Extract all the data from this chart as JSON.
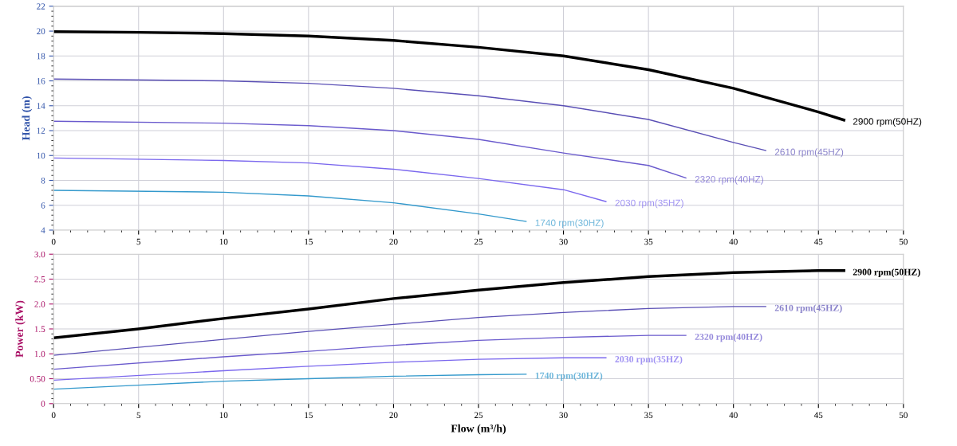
{
  "chart_data": [
    {
      "type": "line",
      "ylabel": "Head (m)",
      "xlim": [
        0,
        50
      ],
      "xticks": [
        0,
        5,
        10,
        15,
        20,
        25,
        30,
        35,
        40,
        45,
        50
      ],
      "ylim": [
        4,
        22
      ],
      "yticks": [
        4,
        6,
        8,
        10,
        12,
        14,
        16,
        18,
        20,
        22
      ],
      "grid": true,
      "legend": false,
      "marker": "none",
      "line_style": "solid",
      "series": [
        {
          "name": "2900 rpm(50HZ)",
          "color": "#000000",
          "x": [
            0,
            5,
            10,
            15,
            20,
            25,
            30,
            35,
            40,
            45,
            46.5
          ],
          "values": [
            19.95,
            19.9,
            19.8,
            19.6,
            19.25,
            18.7,
            18.0,
            16.9,
            15.4,
            13.5,
            12.85
          ]
        },
        {
          "name": "2610 rpm(45HZ)",
          "color": "#5a4fb5",
          "x": [
            0,
            10,
            15,
            20,
            25,
            30,
            35,
            40,
            41.9
          ],
          "values": [
            16.15,
            16.0,
            15.8,
            15.4,
            14.8,
            14.0,
            12.9,
            11.05,
            10.4
          ]
        },
        {
          "name": "2320 rpm(40HZ)",
          "color": "#6a5acd",
          "x": [
            0,
            10,
            15,
            20,
            25,
            30,
            35,
            37.2
          ],
          "values": [
            12.75,
            12.6,
            12.4,
            12.0,
            11.3,
            10.2,
            9.2,
            8.2
          ]
        },
        {
          "name": "2030 rpm(35HZ)",
          "color": "#7b68ee",
          "x": [
            0,
            10,
            15,
            20,
            25,
            30,
            32.5
          ],
          "values": [
            9.8,
            9.6,
            9.4,
            8.9,
            8.15,
            7.25,
            6.3
          ]
        },
        {
          "name": "1740 rpm(30HZ)",
          "color": "#3399cc",
          "x": [
            0,
            10,
            15,
            20,
            25,
            27.8
          ],
          "values": [
            7.2,
            7.05,
            6.75,
            6.2,
            5.3,
            4.7
          ]
        }
      ]
    },
    {
      "type": "line",
      "xlabel": "Flow (m³/h)",
      "ylabel": "Power (kW)",
      "xlim": [
        0,
        50
      ],
      "xticks": [
        0,
        5,
        10,
        15,
        20,
        25,
        30,
        35,
        40,
        45,
        50
      ],
      "ylim": [
        0,
        3.0
      ],
      "yticks": [
        0,
        {
          "value": 0.5,
          "label": "0.50"
        },
        {
          "value": 1.0,
          "label": "1.0"
        },
        {
          "value": 1.5,
          "label": "1.5"
        },
        {
          "value": 2.0,
          "label": "2.0"
        },
        {
          "value": 2.5,
          "label": "2.5"
        },
        {
          "value": 3.0,
          "label": "3.0"
        }
      ],
      "grid": true,
      "legend": false,
      "marker": "none",
      "line_style": "solid",
      "series": [
        {
          "name": "2900 rpm(50HZ)",
          "color": "#000000",
          "x": [
            0,
            5,
            10,
            15,
            20,
            25,
            30,
            35,
            40,
            45,
            46.5
          ],
          "values": [
            1.32,
            1.5,
            1.71,
            1.9,
            2.11,
            2.28,
            2.43,
            2.55,
            2.63,
            2.67,
            2.67
          ]
        },
        {
          "name": "2610 rpm(45HZ)",
          "color": "#5a4fb5",
          "x": [
            0,
            10,
            15,
            20,
            25,
            30,
            35,
            40,
            41.9
          ],
          "values": [
            0.97,
            1.29,
            1.45,
            1.59,
            1.73,
            1.83,
            1.91,
            1.95,
            1.95
          ]
        },
        {
          "name": "2320 rpm(40HZ)",
          "color": "#6a5acd",
          "x": [
            0,
            10,
            15,
            20,
            25,
            30,
            35,
            37.2
          ],
          "values": [
            0.69,
            0.94,
            1.05,
            1.17,
            1.27,
            1.33,
            1.37,
            1.37
          ]
        },
        {
          "name": "2030 rpm(35HZ)",
          "color": "#7b68ee",
          "x": [
            0,
            10,
            15,
            20,
            25,
            30,
            32.5
          ],
          "values": [
            0.47,
            0.66,
            0.75,
            0.83,
            0.89,
            0.92,
            0.92
          ]
        },
        {
          "name": "1740 rpm(30HZ)",
          "color": "#3399cc",
          "x": [
            0,
            5,
            10,
            15,
            20,
            25,
            27.8
          ],
          "values": [
            0.29,
            0.37,
            0.45,
            0.5,
            0.55,
            0.58,
            0.59
          ]
        }
      ]
    }
  ]
}
